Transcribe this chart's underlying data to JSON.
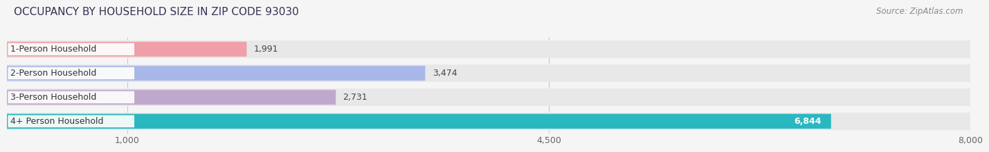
{
  "title": "OCCUPANCY BY HOUSEHOLD SIZE IN ZIP CODE 93030",
  "source_text": "Source: ZipAtlas.com",
  "categories": [
    "1-Person Household",
    "2-Person Household",
    "3-Person Household",
    "4+ Person Household"
  ],
  "values": [
    1991,
    3474,
    2731,
    6844
  ],
  "bar_colors": [
    "#f0a0a8",
    "#a8b8e8",
    "#c0a8cc",
    "#2ab8c0"
  ],
  "value_in_bar": [
    false,
    false,
    false,
    true
  ],
  "row_bg_color": "#e8e8e8",
  "label_bg_color": "#ffffff",
  "bg_color": "#f5f5f5",
  "xmin": 0,
  "xmax": 8000,
  "xticks": [
    1000,
    4500,
    8000
  ],
  "title_fontsize": 11,
  "source_fontsize": 8.5,
  "label_fontsize": 9,
  "value_fontsize": 9,
  "tick_fontsize": 9
}
